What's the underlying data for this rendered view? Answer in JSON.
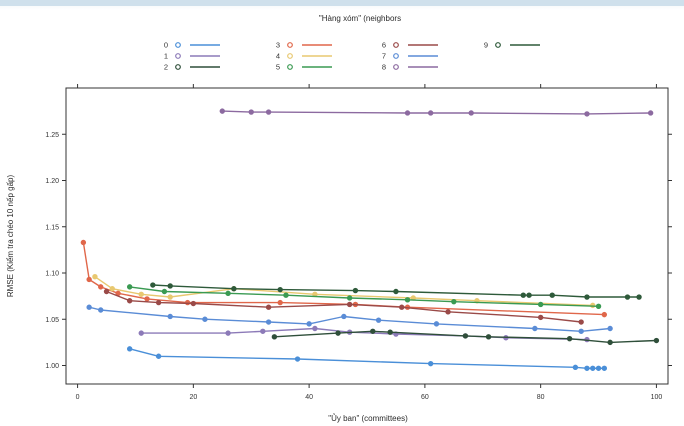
{
  "chart_data": {
    "type": "line",
    "legend_title": "\"Hàng xóm\" (neighbors",
    "legend_position": "top",
    "xlabel": "\"Ủy ban\" (committees)",
    "ylabel": "RMSE (Kiểm tra chéo 10 nếp gấp)",
    "xlim": [
      -2,
      102
    ],
    "ylim": [
      0.98,
      1.3
    ],
    "x_ticks": [
      0,
      20,
      40,
      60,
      80,
      100
    ],
    "y_ticks": [
      1.0,
      1.05,
      1.1,
      1.15,
      1.2,
      1.25
    ],
    "x_tick_labels": [
      "0",
      "20",
      "40",
      "60",
      "80",
      "100"
    ],
    "y_tick_labels": [
      "1.00",
      "1.05",
      "1.10",
      "1.15",
      "1.20",
      "1.25"
    ],
    "grid": false,
    "series": [
      {
        "name": "0",
        "color": "#4a8fd8",
        "x": [
          9,
          14,
          38,
          61,
          86,
          88,
          89,
          90,
          91
        ],
        "y": [
          1.018,
          1.01,
          1.007,
          1.002,
          0.998,
          0.997,
          0.997,
          0.997,
          0.997
        ]
      },
      {
        "name": "1",
        "color": "#8c7ab8",
        "x": [
          11,
          26,
          32,
          41,
          47,
          55,
          67,
          74,
          88
        ],
        "y": [
          1.035,
          1.035,
          1.037,
          1.04,
          1.036,
          1.034,
          1.032,
          1.03,
          1.028
        ]
      },
      {
        "name": "2",
        "color": "#2f4f3a",
        "x": [
          34,
          45,
          51,
          54,
          67,
          71,
          85,
          92,
          100
        ],
        "y": [
          1.031,
          1.035,
          1.037,
          1.036,
          1.032,
          1.031,
          1.029,
          1.025,
          1.027
        ]
      },
      {
        "name": "3",
        "color": "#e0674a",
        "x": [
          1,
          2,
          4,
          7,
          12,
          19,
          35,
          48,
          57,
          91
        ],
        "y": [
          1.133,
          1.093,
          1.085,
          1.078,
          1.072,
          1.068,
          1.068,
          1.066,
          1.063,
          1.055
        ]
      },
      {
        "name": "4",
        "color": "#e8c870",
        "x": [
          3,
          6,
          11,
          16,
          27,
          41,
          58,
          69,
          89
        ],
        "y": [
          1.096,
          1.083,
          1.077,
          1.074,
          1.083,
          1.077,
          1.073,
          1.07,
          1.065
        ]
      },
      {
        "name": "5",
        "color": "#3a9a52",
        "x": [
          9,
          15,
          26,
          36,
          47,
          57,
          65,
          80,
          90
        ],
        "y": [
          1.085,
          1.08,
          1.078,
          1.076,
          1.073,
          1.071,
          1.069,
          1.066,
          1.064
        ]
      },
      {
        "name": "6",
        "color": "#9a4a48",
        "x": [
          5,
          9,
          14,
          20,
          33,
          47,
          56,
          64,
          80,
          87
        ],
        "y": [
          1.08,
          1.07,
          1.068,
          1.067,
          1.063,
          1.066,
          1.063,
          1.058,
          1.052,
          1.047
        ]
      },
      {
        "name": "7",
        "color": "#5a8cd6",
        "x": [
          2,
          4,
          16,
          22,
          33,
          40,
          46,
          52,
          62,
          79,
          87,
          92
        ],
        "y": [
          1.063,
          1.06,
          1.053,
          1.05,
          1.047,
          1.045,
          1.053,
          1.049,
          1.045,
          1.04,
          1.037,
          1.04
        ]
      },
      {
        "name": "8",
        "color": "#8c6aa0",
        "x": [
          25,
          30,
          33,
          57,
          61,
          68,
          88,
          99
        ],
        "y": [
          1.275,
          1.274,
          1.274,
          1.273,
          1.273,
          1.273,
          1.272,
          1.273
        ]
      },
      {
        "name": "9",
        "color": "#2e5a3a",
        "x": [
          13,
          16,
          27,
          35,
          48,
          55,
          77,
          78,
          82,
          88,
          95,
          97
        ],
        "y": [
          1.087,
          1.086,
          1.083,
          1.082,
          1.081,
          1.08,
          1.076,
          1.076,
          1.076,
          1.074,
          1.074,
          1.074
        ]
      }
    ]
  }
}
